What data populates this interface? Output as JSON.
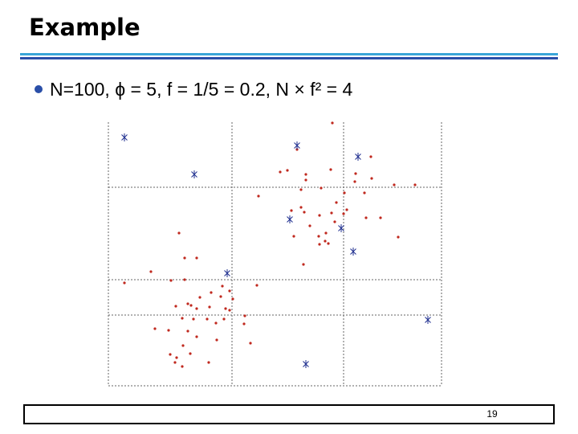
{
  "title": "Example",
  "bullet": "N=100, ϕ = 5, f = 1/5 = 0.2, N × f² = 4",
  "page_number": "19",
  "chart_data": {
    "type": "scatter",
    "xlim": [
      0,
      415
    ],
    "ylim": [
      0,
      328
    ],
    "xticks": [
      154,
      293
    ],
    "yticks": [
      88,
      132,
      247
    ],
    "grid": true,
    "series": [
      {
        "color": "#c0281e",
        "marker": "dot",
        "x": [
          279,
          235,
          327,
          214,
          223,
          246,
          277,
          308,
          328,
          307,
          356,
          382,
          246,
          240,
          265,
          319,
          294,
          187,
          284,
          297,
          240,
          228,
          244,
          263,
          278,
          293,
          321,
          339,
          282,
          251,
          231,
          262,
          271,
          270,
          263,
          274,
          361,
          88,
          110,
          95,
          243,
          53,
          78,
          95,
          20,
          142,
          185,
          128,
          151,
          140,
          114,
          155,
          99,
          84,
          103,
          110,
          126,
          146,
          151,
          92,
          106,
          144,
          169,
          123,
          134,
          58,
          75,
          99,
          110,
          170,
          135,
          177,
          93,
          85,
          83,
          125,
          92,
          77,
          102
        ],
        "values": [
          327,
          294,
          285,
          266,
          268,
          263,
          269,
          264,
          258,
          254,
          250,
          250,
          256,
          244,
          246,
          240,
          240,
          236,
          228,
          219,
          222,
          218,
          216,
          212,
          215,
          214,
          209,
          209,
          204,
          199,
          186,
          186,
          190,
          180,
          176,
          177,
          185,
          190,
          159,
          159,
          151,
          142,
          131,
          132,
          128,
          124,
          125,
          116,
          118,
          111,
          110,
          108,
          102,
          99,
          100,
          96,
          98,
          96,
          94,
          84,
          83,
          83,
          77,
          83,
          78,
          71,
          69,
          68,
          61,
          87,
          57,
          53,
          50,
          35,
          29,
          29,
          24,
          39,
          40
        ]
      },
      {
        "color": "#1f2f8f",
        "marker": "asterisk",
        "x": [
          20,
          235,
          311,
          107,
          226,
          290,
          305,
          148,
          398,
          246
        ],
        "values": [
          309,
          299,
          285,
          263,
          207,
          196,
          167,
          140,
          82,
          27
        ]
      }
    ]
  }
}
